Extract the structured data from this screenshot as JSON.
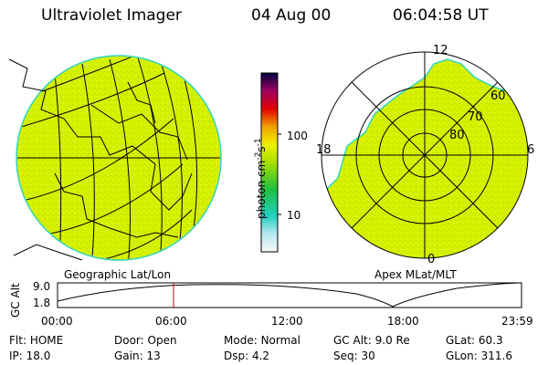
{
  "header": {
    "title": "Ultraviolet Imager",
    "date": "04 Aug 00",
    "time": "06:04:58 UT"
  },
  "colors": {
    "fill": "#d6f000",
    "speckle": "#a8d800",
    "edge": "#2fd6c0",
    "line": "#000000",
    "cursor": "#c00000"
  },
  "geo_panel": {
    "label": "Geographic Lat/Lon"
  },
  "polar_panel": {
    "label": "Apex MLat/MLT",
    "hour_labels": {
      "top": "12",
      "left": "18",
      "right": "6",
      "bottom": "0"
    },
    "lat_labels": [
      "60",
      "70",
      "80"
    ]
  },
  "colorbar": {
    "unit_label": "photon cm",
    "unit_sup1": "-2",
    "unit_mid": "s",
    "unit_sup2": "-1",
    "tick_labels": [
      "100",
      "10"
    ]
  },
  "altitude_plot": {
    "ylabel": "GC Alt",
    "yticks": [
      "9.0",
      "1.8"
    ],
    "xticks": [
      "00:00",
      "06:00",
      "12:00",
      "18:00",
      "23:59"
    ]
  },
  "status": {
    "flt": {
      "label": "Flt:",
      "value": "HOME"
    },
    "door": {
      "label": "Door:",
      "value": "Open"
    },
    "mode": {
      "label": "Mode:",
      "value": "Normal"
    },
    "gcalt": {
      "label": "GC Alt:",
      "value": "9.0 Re"
    },
    "glat": {
      "label": "GLat:",
      "value": "60.3"
    },
    "ip": {
      "label": "IP:",
      "value": "18.0"
    },
    "gain": {
      "label": "Gain:",
      "value": "13"
    },
    "dsp": {
      "label": "Dsp:",
      "value": "4.2"
    },
    "seq": {
      "label": "Seq:",
      "value": "30"
    },
    "glon": {
      "label": "GLon:",
      "value": "311.6"
    }
  }
}
